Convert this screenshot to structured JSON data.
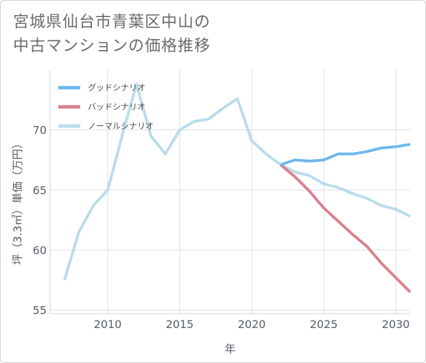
{
  "title": {
    "line1": "宮城県仙台市青葉区中山の",
    "line2": "中古マンションの価格推移"
  },
  "chart_data": {
    "type": "line",
    "xlabel": "年",
    "ylabel": "坪（3.3㎡）単価（万円）",
    "xlim": [
      2006,
      2031
    ],
    "ylim": [
      54.7,
      75
    ],
    "xticks": [
      2010,
      2015,
      2020,
      2025,
      2030
    ],
    "yticks": [
      55,
      60,
      65,
      70
    ],
    "grid": true,
    "legend_position": "top-left",
    "series": [
      {
        "name": "グッドシナリオ",
        "color": "#6cb8ee",
        "x": [
          2022,
          2023,
          2024,
          2025,
          2026,
          2027,
          2028,
          2029,
          2030,
          2031
        ],
        "y": [
          67.1,
          67.5,
          67.4,
          67.5,
          68.0,
          68.0,
          68.2,
          68.5,
          68.6,
          68.8
        ]
      },
      {
        "name": "バッドシナリオ",
        "color": "#d9808c",
        "x": [
          2022,
          2023,
          2024,
          2025,
          2026,
          2027,
          2028,
          2029,
          2030,
          2031
        ],
        "y": [
          67.1,
          66.1,
          64.9,
          63.5,
          62.4,
          61.3,
          60.3,
          58.9,
          57.7,
          56.5
        ]
      },
      {
        "name": "ノーマルシナリオ",
        "color": "#b9dcea",
        "x": [
          2007,
          2008,
          2009,
          2010,
          2011,
          2012,
          2013,
          2014,
          2015,
          2016,
          2017,
          2018,
          2019,
          2020,
          2021,
          2022,
          2023,
          2024,
          2025,
          2026,
          2027,
          2028,
          2029,
          2030,
          2031
        ],
        "y": [
          57.5,
          61.5,
          63.7,
          65.0,
          69.5,
          73.8,
          69.5,
          68.0,
          70.0,
          70.7,
          70.9,
          71.8,
          72.6,
          69.1,
          68.0,
          67.1,
          66.5,
          66.2,
          65.5,
          65.2,
          64.7,
          64.3,
          63.7,
          63.4,
          62.8
        ]
      }
    ]
  }
}
